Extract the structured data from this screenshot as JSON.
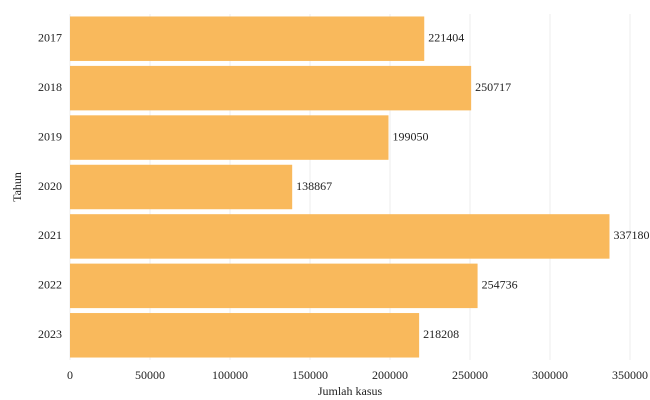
{
  "chart_data": {
    "type": "barh",
    "xlabel": "Jumlah kasus",
    "ylabel": "Tahun",
    "categories": [
      "2017",
      "2018",
      "2019",
      "2020",
      "2021",
      "2022",
      "2023"
    ],
    "values": [
      221404,
      250717,
      199050,
      138867,
      337180,
      254736,
      218208
    ],
    "color": "#f9b95c",
    "xlim": [
      0,
      350000
    ],
    "xticks": [
      0,
      50000,
      100000,
      150000,
      200000,
      250000,
      300000,
      350000
    ],
    "grid": true
  }
}
